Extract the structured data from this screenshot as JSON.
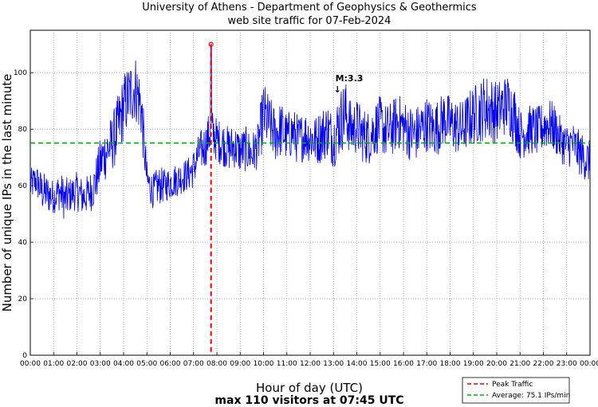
{
  "chart_data": {
    "type": "line",
    "title": "University of Athens - Department of Geophysics & Geothermics",
    "subtitle": "web site traffic for 07-Feb-2024",
    "xlabel": "Hour of day (UTC)",
    "ylabel": "Number of unique IPs in the last minute",
    "summary": "max 110 visitors at 07:45 UTC",
    "xlim": [
      0,
      24
    ],
    "ylim": [
      0,
      115
    ],
    "x_ticks": [
      "00:00",
      "01:00",
      "02:00",
      "03:00",
      "04:00",
      "05:00",
      "06:00",
      "07:00",
      "08:00",
      "09:00",
      "10:00",
      "11:00",
      "12:00",
      "13:00",
      "14:00",
      "15:00",
      "16:00",
      "17:00",
      "18:00",
      "19:00",
      "20:00",
      "21:00",
      "22:00",
      "23:00",
      "00:00"
    ],
    "y_ticks": [
      0,
      20,
      40,
      60,
      80,
      100
    ],
    "grid": true,
    "series": [
      {
        "name": "Unique IPs per minute",
        "color": "#0000ee",
        "x": [
          0,
          0.25,
          0.5,
          0.75,
          1,
          1.25,
          1.5,
          1.75,
          2,
          2.25,
          2.5,
          2.75,
          3,
          3.25,
          3.5,
          3.75,
          4,
          4.25,
          4.5,
          4.75,
          5,
          5.25,
          5.5,
          5.75,
          6,
          6.25,
          6.5,
          6.75,
          7,
          7.25,
          7.5,
          7.75,
          8,
          8.25,
          8.5,
          8.75,
          9,
          9.25,
          9.5,
          9.75,
          10,
          10.25,
          10.5,
          10.75,
          11,
          11.25,
          11.5,
          11.75,
          12,
          12.25,
          12.5,
          12.75,
          13,
          13.25,
          13.5,
          13.75,
          14,
          14.25,
          14.5,
          14.75,
          15,
          15.25,
          15.5,
          15.75,
          16,
          16.25,
          16.5,
          16.75,
          17,
          17.25,
          17.5,
          17.75,
          18,
          18.25,
          18.5,
          18.75,
          19,
          19.25,
          19.5,
          19.75,
          20,
          20.25,
          20.5,
          20.75,
          21,
          21.25,
          21.5,
          21.75,
          22,
          22.25,
          22.5,
          22.75,
          23,
          23.25,
          23.5,
          23.75,
          24
        ],
        "values": [
          60,
          62,
          58,
          57,
          56,
          58,
          55,
          57,
          58,
          56,
          57,
          60,
          68,
          72,
          75,
          80,
          88,
          92,
          95,
          88,
          62,
          58,
          60,
          60,
          61,
          62,
          63,
          64,
          66,
          72,
          74,
          80,
          76,
          75,
          73,
          74,
          72,
          73,
          71,
          74,
          85,
          82,
          78,
          80,
          77,
          79,
          76,
          78,
          77,
          76,
          78,
          80,
          76,
          82,
          86,
          80,
          81,
          78,
          77,
          80,
          82,
          79,
          80,
          83,
          81,
          79,
          78,
          80,
          82,
          80,
          81,
          84,
          82,
          81,
          80,
          83,
          85,
          86,
          88,
          87,
          86,
          88,
          89,
          85,
          78,
          79,
          80,
          79,
          81,
          82,
          80,
          76,
          74,
          75,
          72,
          70,
          68
        ],
        "noise": [
          6,
          6,
          7,
          7,
          6,
          7,
          8,
          6,
          7,
          7,
          7,
          8,
          9,
          10,
          10,
          12,
          12,
          12,
          12,
          12,
          7,
          6,
          7,
          6,
          6,
          6,
          6,
          6,
          7,
          7,
          8,
          8,
          8,
          8,
          8,
          8,
          8,
          8,
          8,
          8,
          12,
          10,
          10,
          10,
          9,
          9,
          9,
          9,
          9,
          9,
          10,
          10,
          10,
          12,
          12,
          10,
          10,
          10,
          10,
          10,
          10,
          10,
          10,
          10,
          10,
          10,
          10,
          10,
          10,
          10,
          10,
          10,
          10,
          10,
          10,
          10,
          11,
          11,
          12,
          12,
          11,
          11,
          11,
          11,
          9,
          9,
          9,
          9,
          9,
          9,
          9,
          8,
          8,
          8,
          8,
          8,
          8
        ]
      }
    ],
    "peak": {
      "label": "Peak Traffic",
      "hour": 7.75,
      "value": 110,
      "color": "#ee0000"
    },
    "average": {
      "label": "Average: 75.1 IPs/min",
      "value": 75.1,
      "color": "#00aa00"
    },
    "annotation": {
      "text": "M:3.3",
      "hour": 13.08,
      "value": 97
    }
  }
}
